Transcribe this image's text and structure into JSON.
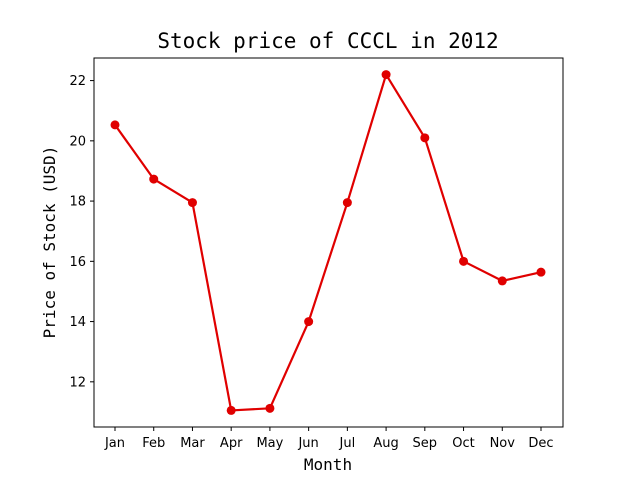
{
  "chart_data": {
    "type": "line",
    "title": "Stock price of CCCL in 2012",
    "xlabel": "Month",
    "ylabel": "Price of Stock (USD)",
    "categories": [
      "Jan",
      "Feb",
      "Mar",
      "Apr",
      "May",
      "Jun",
      "Jul",
      "Aug",
      "Sep",
      "Oct",
      "Nov",
      "Dec"
    ],
    "series": [
      {
        "values": [
          20.53,
          18.73,
          17.95,
          11.05,
          11.12,
          14.0,
          17.95,
          22.2,
          20.1,
          16.0,
          15.35,
          15.64
        ],
        "color": "#e00000",
        "marker": "circle"
      }
    ],
    "yticks": [
      12,
      14,
      16,
      18,
      20,
      22
    ],
    "ylim": [
      10.5,
      22.75
    ],
    "grid": false,
    "legend": "none"
  }
}
